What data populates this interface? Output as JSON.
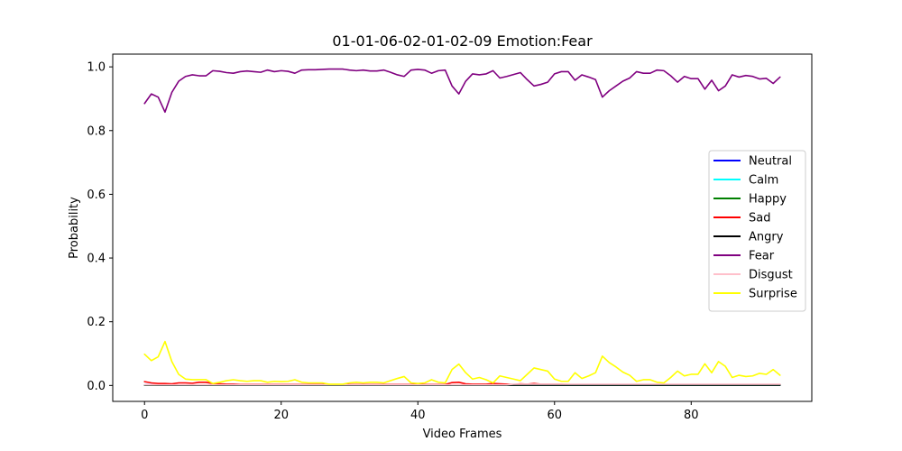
{
  "chart_data": {
    "type": "line",
    "title": "01-01-06-02-01-02-09 Emotion:Fear",
    "xlabel": "Video Frames",
    "ylabel": "Probability",
    "xlim": [
      -4.65,
      97.65
    ],
    "ylim": [
      -0.05,
      1.04
    ],
    "xticks": [
      0,
      20,
      40,
      60,
      80
    ],
    "yticks": [
      0.0,
      0.2,
      0.4,
      0.6,
      0.8,
      1.0
    ],
    "xtick_labels": [
      "0",
      "20",
      "40",
      "60",
      "80"
    ],
    "ytick_labels": [
      "0.0",
      "0.2",
      "0.4",
      "0.6",
      "0.8",
      "1.0"
    ],
    "grid": false,
    "legend_position": "center-right",
    "x": [
      0,
      1,
      2,
      3,
      4,
      5,
      6,
      7,
      8,
      9,
      10,
      11,
      12,
      13,
      14,
      15,
      16,
      17,
      18,
      19,
      20,
      21,
      22,
      23,
      24,
      25,
      26,
      27,
      28,
      29,
      30,
      31,
      32,
      33,
      34,
      35,
      36,
      37,
      38,
      39,
      40,
      41,
      42,
      43,
      44,
      45,
      46,
      47,
      48,
      49,
      50,
      51,
      52,
      53,
      54,
      55,
      56,
      57,
      58,
      59,
      60,
      61,
      62,
      63,
      64,
      65,
      66,
      67,
      68,
      69,
      70,
      71,
      72,
      73,
      74,
      75,
      76,
      77,
      78,
      79,
      80,
      81,
      82,
      83,
      84,
      85,
      86,
      87,
      88,
      89,
      90,
      91,
      92,
      93
    ],
    "series": [
      {
        "name": "Neutral",
        "color": "#0000ff",
        "values": [
          0.002,
          0.002,
          0.001,
          0.001,
          0.001,
          0.001,
          0.001,
          0.001,
          0.001,
          0.001,
          0.001,
          0.001,
          0.001,
          0.001,
          0.001,
          0.001,
          0.001,
          0.001,
          0.001,
          0.001,
          0.001,
          0.001,
          0.001,
          0.001,
          0.001,
          0.001,
          0.001,
          0.001,
          0.001,
          0.001,
          0.001,
          0.001,
          0.001,
          0.001,
          0.001,
          0.001,
          0.001,
          0.001,
          0.001,
          0.001,
          0.001,
          0.001,
          0.001,
          0.001,
          0.001,
          0.001,
          0.001,
          0.001,
          0.001,
          0.001,
          0.001,
          0.001,
          0.001,
          0.001,
          0.001,
          0.001,
          0.001,
          0.001,
          0.001,
          0.001,
          0.001,
          0.001,
          0.001,
          0.001,
          0.001,
          0.001,
          0.001,
          0.001,
          0.001,
          0.001,
          0.001,
          0.001,
          0.001,
          0.001,
          0.001,
          0.001,
          0.001,
          0.001,
          0.001,
          0.001,
          0.001,
          0.001,
          0.001,
          0.001,
          0.001,
          0.001,
          0.001,
          0.001,
          0.001,
          0.001,
          0.001,
          0.001,
          0.001,
          0.001
        ]
      },
      {
        "name": "Calm",
        "color": "#00ffff",
        "values": [
          0.001,
          0.001,
          0.001,
          0.001,
          0.001,
          0.001,
          0.001,
          0.001,
          0.001,
          0.001,
          0.001,
          0.001,
          0.001,
          0.001,
          0.001,
          0.001,
          0.001,
          0.001,
          0.001,
          0.001,
          0.001,
          0.001,
          0.001,
          0.001,
          0.001,
          0.001,
          0.001,
          0.001,
          0.001,
          0.001,
          0.001,
          0.001,
          0.001,
          0.001,
          0.001,
          0.001,
          0.001,
          0.001,
          0.001,
          0.001,
          0.001,
          0.001,
          0.001,
          0.001,
          0.001,
          0.001,
          0.001,
          0.001,
          0.001,
          0.001,
          0.001,
          0.001,
          0.001,
          0.001,
          0.001,
          0.001,
          0.001,
          0.001,
          0.001,
          0.001,
          0.001,
          0.001,
          0.001,
          0.001,
          0.001,
          0.001,
          0.001,
          0.001,
          0.001,
          0.001,
          0.001,
          0.001,
          0.001,
          0.001,
          0.001,
          0.001,
          0.001,
          0.001,
          0.001,
          0.001,
          0.001,
          0.001,
          0.001,
          0.001,
          0.001,
          0.001,
          0.001,
          0.001,
          0.001,
          0.001,
          0.001,
          0.001,
          0.001,
          0.001
        ]
      },
      {
        "name": "Happy",
        "color": "#008000",
        "values": [
          0.001,
          0.001,
          0.001,
          0.001,
          0.001,
          0.001,
          0.001,
          0.001,
          0.001,
          0.001,
          0.001,
          0.001,
          0.001,
          0.001,
          0.001,
          0.001,
          0.001,
          0.001,
          0.001,
          0.001,
          0.001,
          0.001,
          0.001,
          0.001,
          0.001,
          0.001,
          0.001,
          0.001,
          0.001,
          0.001,
          0.001,
          0.001,
          0.001,
          0.001,
          0.001,
          0.001,
          0.001,
          0.001,
          0.001,
          0.001,
          0.001,
          0.001,
          0.001,
          0.001,
          0.001,
          0.001,
          0.001,
          0.001,
          0.001,
          0.001,
          0.001,
          0.001,
          0.001,
          0.001,
          0.001,
          0.001,
          0.001,
          0.001,
          0.001,
          0.001,
          0.001,
          0.001,
          0.001,
          0.001,
          0.001,
          0.001,
          0.001,
          0.001,
          0.001,
          0.001,
          0.001,
          0.001,
          0.001,
          0.001,
          0.001,
          0.001,
          0.001,
          0.001,
          0.001,
          0.001,
          0.001,
          0.001,
          0.001,
          0.001,
          0.001,
          0.001,
          0.001,
          0.001,
          0.001,
          0.001,
          0.001,
          0.001,
          0.001,
          0.001
        ]
      },
      {
        "name": "Sad",
        "color": "#ff0000",
        "values": [
          0.012,
          0.008,
          0.006,
          0.006,
          0.005,
          0.008,
          0.008,
          0.007,
          0.01,
          0.01,
          0.006,
          0.005,
          0.004,
          0.004,
          0.003,
          0.003,
          0.003,
          0.003,
          0.003,
          0.003,
          0.003,
          0.003,
          0.003,
          0.003,
          0.003,
          0.003,
          0.003,
          0.003,
          0.003,
          0.003,
          0.003,
          0.003,
          0.003,
          0.003,
          0.003,
          0.003,
          0.003,
          0.003,
          0.003,
          0.003,
          0.003,
          0.003,
          0.003,
          0.003,
          0.003,
          0.009,
          0.01,
          0.005,
          0.004,
          0.004,
          0.004,
          0.006,
          0.005,
          0.004,
          0.003,
          0.005,
          0.004,
          0.006,
          0.004,
          0.004,
          0.004,
          0.004,
          0.003,
          0.003,
          0.003,
          0.003,
          0.003,
          0.003,
          0.003,
          0.003,
          0.003,
          0.003,
          0.003,
          0.003,
          0.003,
          0.003,
          0.003,
          0.003,
          0.003,
          0.003,
          0.003,
          0.003,
          0.003,
          0.003,
          0.003,
          0.003,
          0.003,
          0.003,
          0.003,
          0.003,
          0.003,
          0.003,
          0.003,
          0.003
        ]
      },
      {
        "name": "Angry",
        "color": "#000000",
        "values": [
          0.001,
          0.001,
          0.001,
          0.001,
          0.001,
          0.001,
          0.001,
          0.001,
          0.001,
          0.001,
          0.001,
          0.001,
          0.001,
          0.001,
          0.001,
          0.001,
          0.001,
          0.001,
          0.001,
          0.001,
          0.001,
          0.001,
          0.001,
          0.001,
          0.001,
          0.001,
          0.001,
          0.001,
          0.001,
          0.001,
          0.001,
          0.001,
          0.001,
          0.001,
          0.001,
          0.001,
          0.001,
          0.001,
          0.001,
          0.001,
          0.001,
          0.001,
          0.001,
          0.001,
          0.001,
          0.001,
          0.001,
          0.001,
          0.001,
          0.001,
          0.001,
          0.001,
          0.001,
          0.001,
          0.001,
          0.001,
          0.001,
          0.001,
          0.001,
          0.001,
          0.001,
          0.001,
          0.001,
          0.001,
          0.001,
          0.001,
          0.001,
          0.001,
          0.001,
          0.001,
          0.001,
          0.001,
          0.001,
          0.001,
          0.001,
          0.001,
          0.001,
          0.001,
          0.001,
          0.001,
          0.001,
          0.001,
          0.001,
          0.001,
          0.001,
          0.001,
          0.001,
          0.001,
          0.001,
          0.001,
          0.001,
          0.001,
          0.001,
          0.001
        ]
      },
      {
        "name": "Fear",
        "color": "#800080",
        "values": [
          0.885,
          0.915,
          0.905,
          0.858,
          0.92,
          0.955,
          0.97,
          0.975,
          0.972,
          0.972,
          0.988,
          0.986,
          0.982,
          0.98,
          0.985,
          0.987,
          0.985,
          0.983,
          0.99,
          0.985,
          0.988,
          0.986,
          0.98,
          0.99,
          0.991,
          0.991,
          0.992,
          0.993,
          0.993,
          0.993,
          0.99,
          0.988,
          0.99,
          0.987,
          0.987,
          0.99,
          0.983,
          0.975,
          0.97,
          0.99,
          0.992,
          0.99,
          0.98,
          0.988,
          0.99,
          0.94,
          0.915,
          0.955,
          0.978,
          0.975,
          0.978,
          0.988,
          0.965,
          0.97,
          0.976,
          0.982,
          0.96,
          0.94,
          0.945,
          0.952,
          0.978,
          0.985,
          0.985,
          0.958,
          0.975,
          0.968,
          0.96,
          0.905,
          0.925,
          0.94,
          0.955,
          0.965,
          0.985,
          0.98,
          0.98,
          0.99,
          0.988,
          0.972,
          0.952,
          0.97,
          0.963,
          0.963,
          0.93,
          0.958,
          0.925,
          0.94,
          0.975,
          0.968,
          0.973,
          0.97,
          0.962,
          0.964,
          0.948,
          0.968
        ]
      },
      {
        "name": "Disgust",
        "color": "#ffc0cb",
        "values": [
          0.002,
          0.002,
          0.002,
          0.002,
          0.002,
          0.002,
          0.002,
          0.002,
          0.002,
          0.002,
          0.002,
          0.002,
          0.002,
          0.002,
          0.002,
          0.002,
          0.002,
          0.002,
          0.002,
          0.002,
          0.002,
          0.002,
          0.002,
          0.002,
          0.002,
          0.002,
          0.002,
          0.002,
          0.002,
          0.002,
          0.002,
          0.002,
          0.002,
          0.002,
          0.002,
          0.002,
          0.002,
          0.002,
          0.002,
          0.002,
          0.002,
          0.002,
          0.002,
          0.002,
          0.002,
          0.002,
          0.002,
          0.002,
          0.002,
          0.002,
          0.002,
          0.002,
          0.002,
          0.002,
          0.004,
          0.004,
          0.004,
          0.004,
          0.004,
          0.004,
          0.004,
          0.004,
          0.004,
          0.004,
          0.004,
          0.004,
          0.004,
          0.004,
          0.004,
          0.004,
          0.004,
          0.004,
          0.004,
          0.004,
          0.004,
          0.004,
          0.004,
          0.004,
          0.004,
          0.004,
          0.004,
          0.004,
          0.004,
          0.004,
          0.004,
          0.004,
          0.004,
          0.004,
          0.004,
          0.004,
          0.004,
          0.004,
          0.004,
          0.004
        ]
      },
      {
        "name": "Surprise",
        "color": "#ffff00",
        "values": [
          0.098,
          0.078,
          0.09,
          0.138,
          0.075,
          0.035,
          0.02,
          0.018,
          0.018,
          0.018,
          0.006,
          0.01,
          0.015,
          0.018,
          0.015,
          0.013,
          0.015,
          0.015,
          0.01,
          0.013,
          0.012,
          0.013,
          0.018,
          0.01,
          0.008,
          0.008,
          0.008,
          0.004,
          0.004,
          0.004,
          0.008,
          0.01,
          0.008,
          0.01,
          0.01,
          0.008,
          0.015,
          0.022,
          0.028,
          0.008,
          0.006,
          0.008,
          0.018,
          0.01,
          0.008,
          0.05,
          0.067,
          0.04,
          0.02,
          0.025,
          0.018,
          0.008,
          0.03,
          0.025,
          0.02,
          0.015,
          0.035,
          0.055,
          0.05,
          0.045,
          0.02,
          0.013,
          0.013,
          0.04,
          0.022,
          0.03,
          0.04,
          0.092,
          0.072,
          0.058,
          0.042,
          0.032,
          0.013,
          0.018,
          0.018,
          0.01,
          0.008,
          0.025,
          0.045,
          0.03,
          0.035,
          0.035,
          0.068,
          0.04,
          0.075,
          0.06,
          0.025,
          0.032,
          0.028,
          0.03,
          0.038,
          0.035,
          0.05,
          0.032
        ]
      }
    ]
  }
}
